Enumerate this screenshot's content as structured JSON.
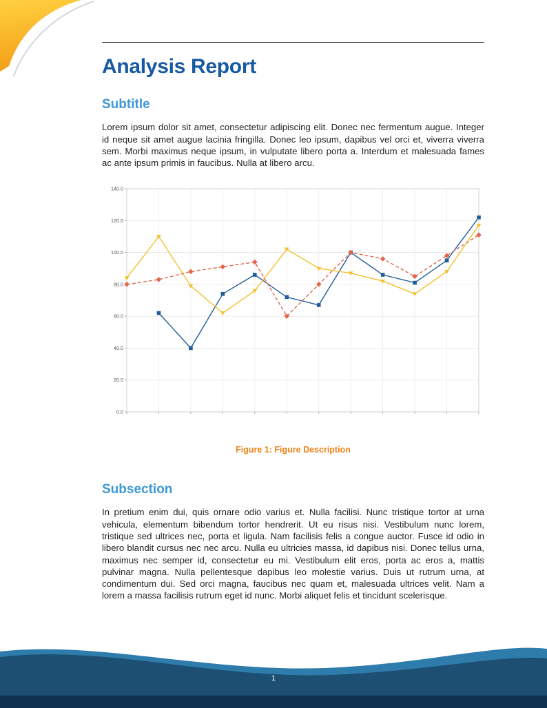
{
  "document": {
    "title": "Analysis Report",
    "sections": [
      {
        "heading": "Subtitle",
        "body": "Lorem ipsum dolor sit amet, consectetur adipiscing elit. Donec nec fermentum augue. Integer id neque sit amet augue lacinia fringilla. Donec leo ipsum, dapibus vel orci et, viverra viverra sem. Morbi maximus neque ipsum, in vulputate libero porta a. Interdum et malesuada fames ac ante ipsum primis in faucibus. Nulla at libero arcu."
      },
      {
        "heading": "Subsection",
        "body": "In pretium enim dui, quis ornare odio varius et. Nulla facilisi. Nunc tristique tortor at urna vehicula, elementum bibendum tortor hendrerit. Ut eu risus nisi. Vestibulum nunc lorem, tristique sed ultrices nec, porta et ligula. Nam facilisis felis a congue auctor. Fusce id odio in libero blandit cursus nec nec arcu. Nulla eu ultricies massa, id dapibus nisi. Donec tellus urna, maximus nec semper id, consectetur eu mi. Vestibulum elit eros, porta ac eros a, mattis pulvinar magna. Nulla pellentesque dapibus leo molestie varius. Duis ut rutrum urna, at condimentum dui. Sed orci magna, faucibus nec quam et, malesuada ultrices velit. Nam a lorem a massa facilisis rutrum eget id nunc. Morbi aliquet felis et tincidunt scelerisque."
      }
    ],
    "figure_caption": "Figure 1: Figure Description",
    "page_number": "1"
  },
  "colors": {
    "title": "#1759a3",
    "subheading": "#3d99d4",
    "caption": "#ee8318",
    "footer_light": "#2e7cab",
    "footer_dark": "#1c4f72",
    "footer_deep": "#0f3150",
    "corner_yellow": "#ffcf3f",
    "corner_orange": "#f49d16"
  },
  "chart_data": {
    "type": "line",
    "title": "",
    "xlabel": "",
    "ylabel": "",
    "x": [
      1,
      2,
      3,
      4,
      5,
      6,
      7,
      8,
      9,
      10,
      11,
      12
    ],
    "ylim": [
      0,
      140
    ],
    "ytick_labels": [
      "0.0",
      "20.0",
      "40.0",
      "60.0",
      "80.0",
      "100.0",
      "120.0",
      "140.0"
    ],
    "grid": true,
    "legend_position": "none",
    "series": [
      {
        "name": "series-blue",
        "color": "#1f5c99",
        "marker": "square",
        "dash": false,
        "values": [
          null,
          62,
          40,
          74,
          86,
          72,
          67,
          100,
          86,
          81,
          95,
          122
        ]
      },
      {
        "name": "series-yellow",
        "color": "#f2c12e",
        "marker": "triangle",
        "dash": false,
        "values": [
          84,
          110,
          79,
          62,
          76,
          102,
          90,
          87,
          82,
          74,
          88,
          117
        ]
      },
      {
        "name": "series-red-dashed",
        "color": "#e2674d",
        "marker": "diamond",
        "dash": true,
        "values": [
          80,
          83,
          88,
          91,
          94,
          60,
          80,
          100,
          96,
          85,
          98,
          111
        ]
      }
    ]
  }
}
